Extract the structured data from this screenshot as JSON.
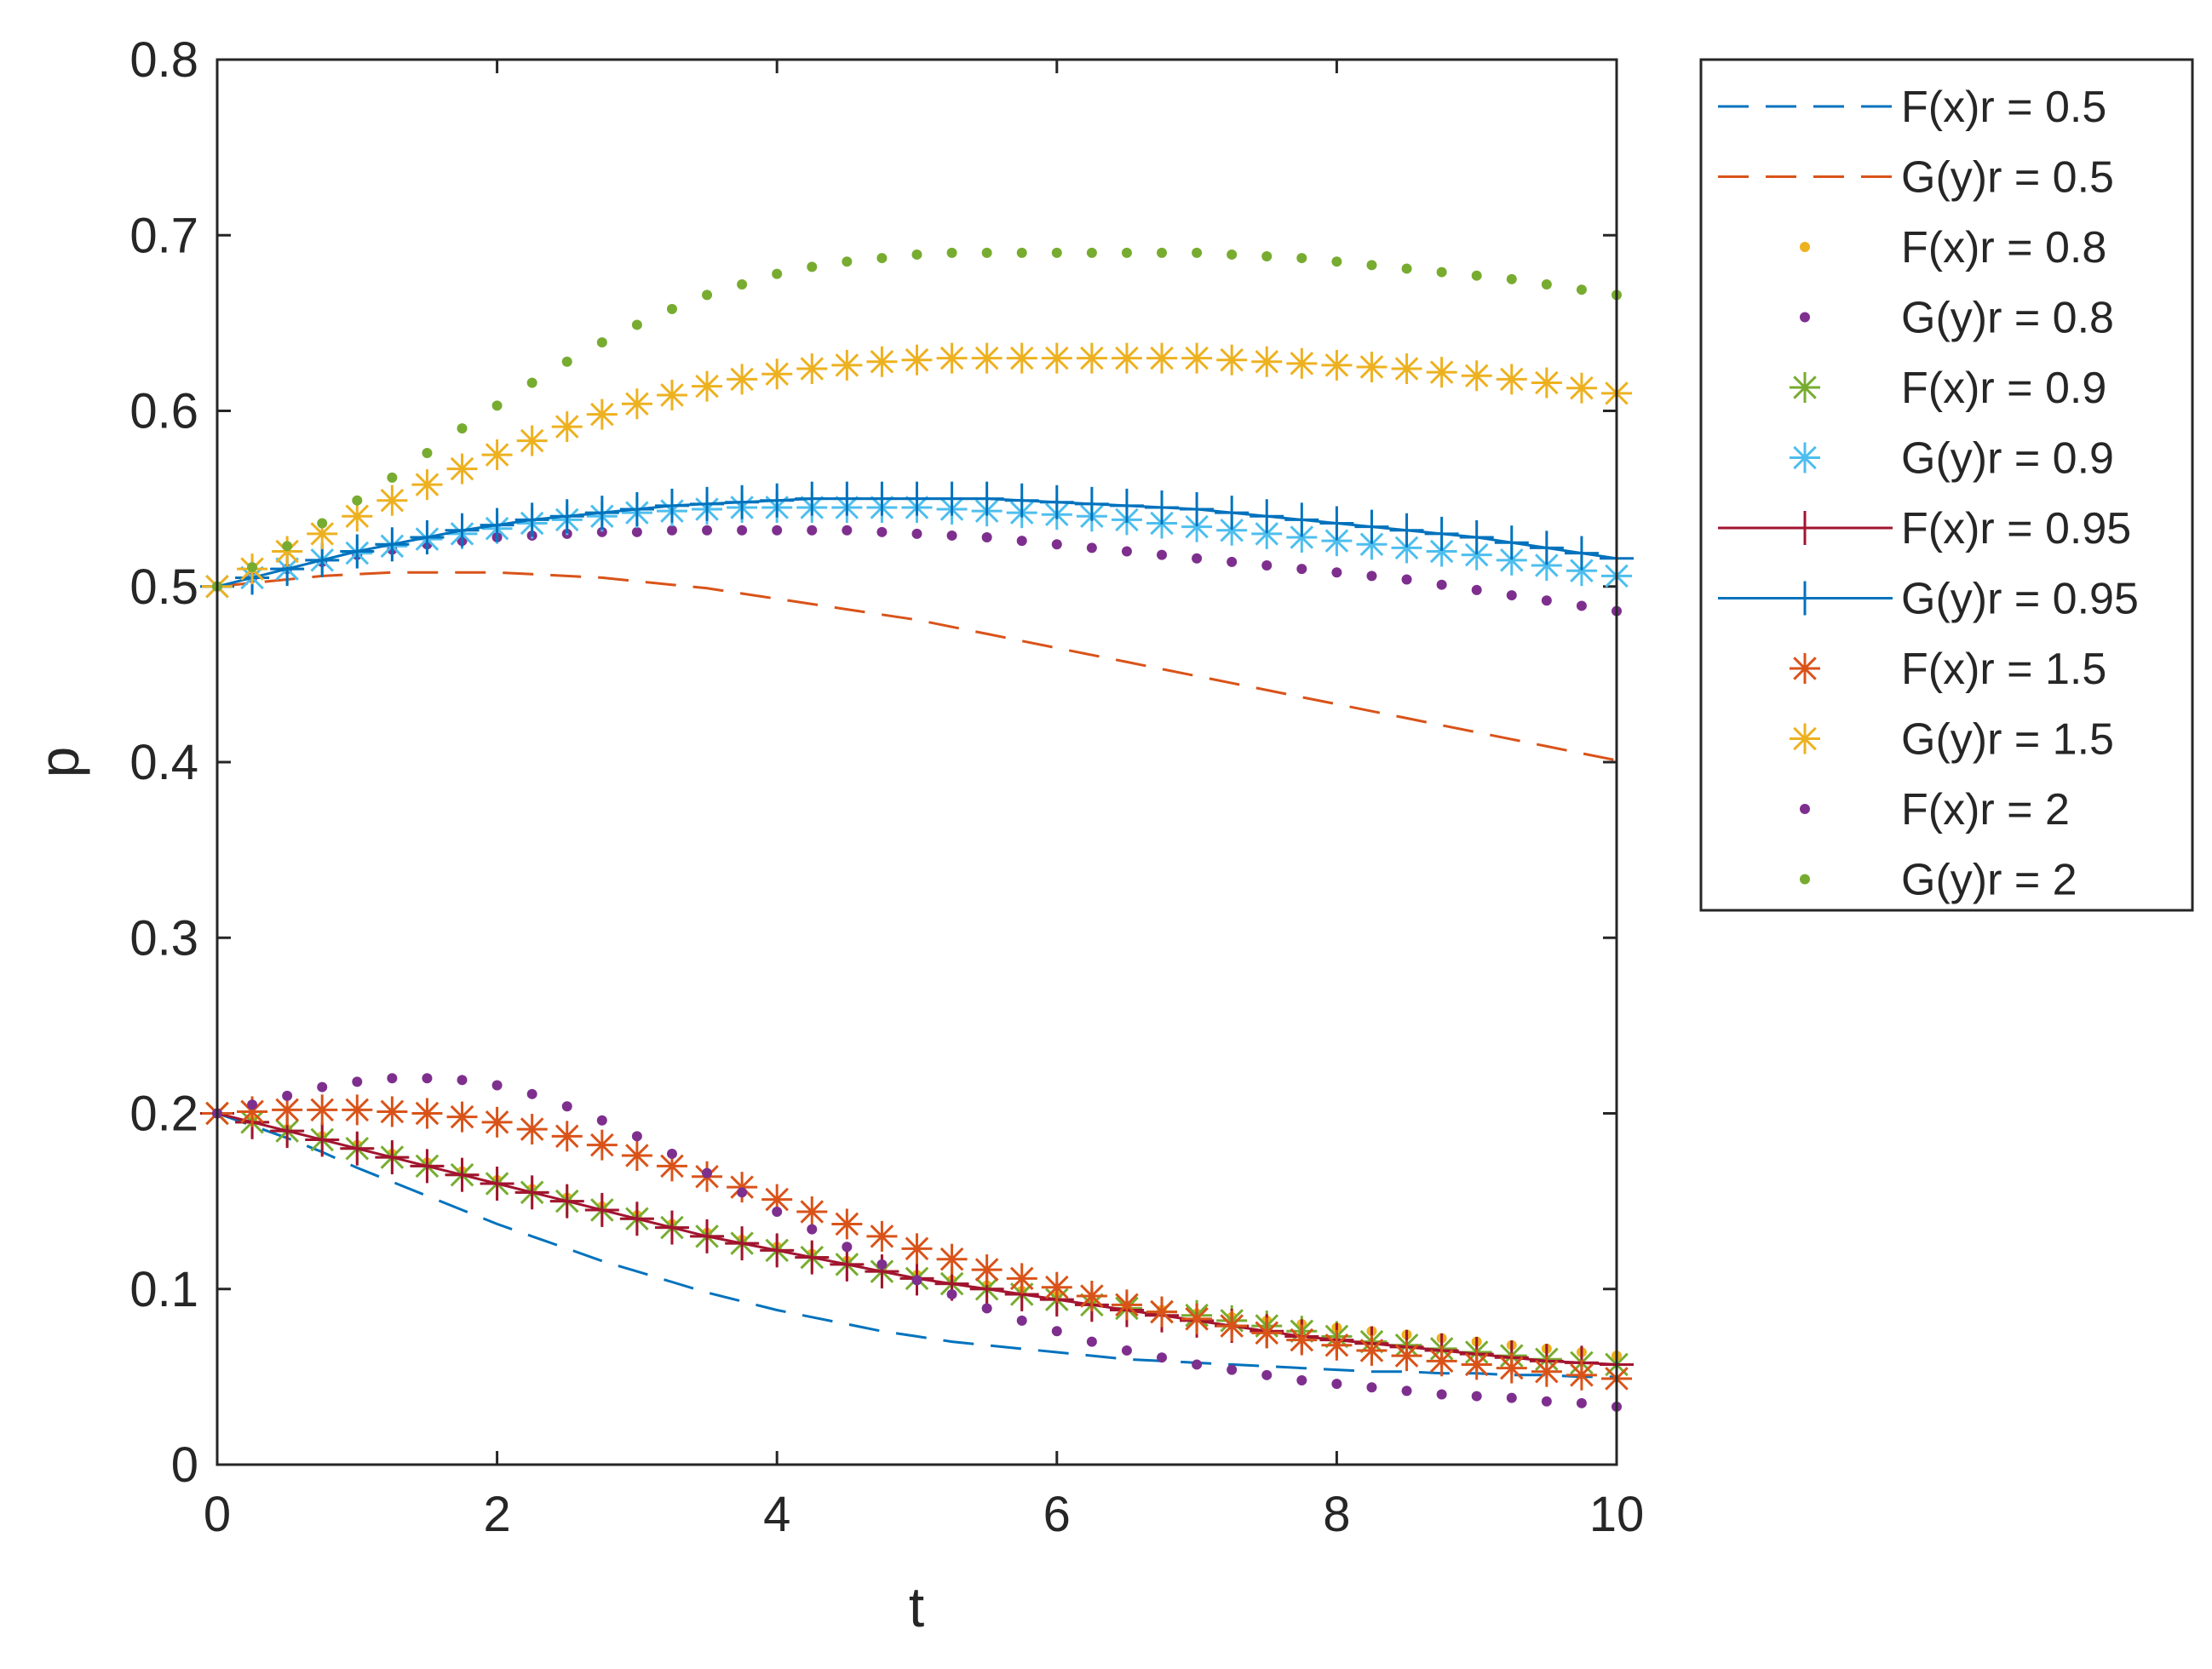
{
  "chart_data": {
    "type": "line",
    "xlabel": "t",
    "ylabel": "p",
    "xlim": [
      0,
      10
    ],
    "ylim": [
      0,
      0.8
    ],
    "xticks": [
      "0",
      "2",
      "4",
      "6",
      "8",
      "10"
    ],
    "yticks": [
      "0",
      "0.1",
      "0.2",
      "0.3",
      "0.4",
      "0.5",
      "0.6",
      "0.7",
      "0.8"
    ],
    "grid": false,
    "legend_position": "outside-right",
    "x": [
      0,
      0.25,
      0.5,
      0.75,
      1,
      1.25,
      1.5,
      1.75,
      2,
      2.25,
      2.5,
      2.75,
      3,
      3.25,
      3.5,
      3.75,
      4,
      4.25,
      4.5,
      4.75,
      5,
      5.25,
      5.5,
      5.75,
      6,
      6.25,
      6.5,
      6.75,
      7,
      7.25,
      7.5,
      7.75,
      8,
      8.25,
      8.5,
      8.75,
      9,
      9.25,
      9.5,
      9.75,
      10
    ],
    "series": [
      {
        "name": "F(x)r = 0.5",
        "color": "#0072BD",
        "style": "dashed",
        "marker": "none",
        "values": [
          0.2,
          0.193,
          0.186,
          0.178,
          0.169,
          0.161,
          0.153,
          0.145,
          0.137,
          0.13,
          0.123,
          0.116,
          0.11,
          0.104,
          0.098,
          0.093,
          0.088,
          0.084,
          0.08,
          0.076,
          0.073,
          0.07,
          0.068,
          0.066,
          0.064,
          0.062,
          0.06,
          0.059,
          0.058,
          0.057,
          0.056,
          0.055,
          0.054,
          0.053,
          0.053,
          0.052,
          0.052,
          0.051,
          0.051,
          0.05,
          0.05
        ]
      },
      {
        "name": "G(y)r = 0.5",
        "color": "#D95319",
        "style": "dashed",
        "marker": "none",
        "values": [
          0.5,
          0.502,
          0.504,
          0.506,
          0.507,
          0.508,
          0.508,
          0.508,
          0.508,
          0.507,
          0.506,
          0.505,
          0.503,
          0.501,
          0.499,
          0.496,
          0.493,
          0.49,
          0.487,
          0.484,
          0.481,
          0.477,
          0.473,
          0.469,
          0.465,
          0.461,
          0.457,
          0.453,
          0.449,
          0.445,
          0.441,
          0.437,
          0.433,
          0.429,
          0.425,
          0.421,
          0.417,
          0.413,
          0.409,
          0.405,
          0.401
        ]
      },
      {
        "name": "F(x)r = 0.8",
        "color": "#EDB120",
        "style": "none",
        "marker": "dot",
        "values": [
          0.2,
          0.196,
          0.191,
          0.187,
          0.182,
          0.177,
          0.172,
          0.167,
          0.162,
          0.157,
          0.152,
          0.147,
          0.142,
          0.137,
          0.132,
          0.128,
          0.124,
          0.12,
          0.116,
          0.112,
          0.108,
          0.105,
          0.102,
          0.099,
          0.096,
          0.093,
          0.09,
          0.088,
          0.086,
          0.084,
          0.082,
          0.08,
          0.078,
          0.076,
          0.074,
          0.072,
          0.07,
          0.068,
          0.066,
          0.064,
          0.062
        ]
      },
      {
        "name": "G(y)r = 0.8",
        "color": "#7E2F8E",
        "style": "none",
        "marker": "dot",
        "values": [
          0.5,
          0.505,
          0.51,
          0.514,
          0.518,
          0.521,
          0.524,
          0.526,
          0.528,
          0.529,
          0.53,
          0.531,
          0.531,
          0.532,
          0.532,
          0.532,
          0.532,
          0.532,
          0.532,
          0.531,
          0.53,
          0.529,
          0.528,
          0.526,
          0.524,
          0.522,
          0.52,
          0.518,
          0.516,
          0.514,
          0.512,
          0.51,
          0.508,
          0.506,
          0.504,
          0.501,
          0.498,
          0.495,
          0.492,
          0.489,
          0.486
        ]
      },
      {
        "name": "F(x)r = 0.9",
        "color": "#77AC30",
        "style": "none",
        "marker": "asterisk",
        "values": [
          0.2,
          0.195,
          0.19,
          0.185,
          0.18,
          0.175,
          0.17,
          0.165,
          0.16,
          0.155,
          0.15,
          0.145,
          0.14,
          0.135,
          0.13,
          0.126,
          0.122,
          0.118,
          0.114,
          0.11,
          0.106,
          0.103,
          0.1,
          0.097,
          0.094,
          0.091,
          0.089,
          0.087,
          0.085,
          0.082,
          0.079,
          0.076,
          0.073,
          0.07,
          0.068,
          0.066,
          0.064,
          0.062,
          0.06,
          0.058,
          0.057
        ]
      },
      {
        "name": "G(y)r = 0.9",
        "color": "#4DBEEE",
        "style": "none",
        "marker": "asterisk",
        "values": [
          0.5,
          0.505,
          0.51,
          0.515,
          0.519,
          0.523,
          0.527,
          0.53,
          0.533,
          0.536,
          0.538,
          0.54,
          0.542,
          0.543,
          0.544,
          0.545,
          0.545,
          0.545,
          0.545,
          0.545,
          0.545,
          0.544,
          0.543,
          0.542,
          0.541,
          0.54,
          0.538,
          0.536,
          0.534,
          0.532,
          0.53,
          0.528,
          0.526,
          0.524,
          0.522,
          0.52,
          0.518,
          0.515,
          0.512,
          0.509,
          0.506
        ]
      },
      {
        "name": "F(x)r = 0.95",
        "color": "#A2142F",
        "style": "solid",
        "marker": "plus",
        "values": [
          0.2,
          0.195,
          0.19,
          0.185,
          0.18,
          0.175,
          0.17,
          0.165,
          0.16,
          0.155,
          0.15,
          0.145,
          0.14,
          0.135,
          0.13,
          0.126,
          0.122,
          0.118,
          0.114,
          0.11,
          0.106,
          0.103,
          0.1,
          0.097,
          0.094,
          0.091,
          0.088,
          0.085,
          0.082,
          0.079,
          0.076,
          0.073,
          0.071,
          0.069,
          0.067,
          0.065,
          0.063,
          0.061,
          0.059,
          0.058,
          0.057
        ]
      },
      {
        "name": "G(y)r = 0.95",
        "color": "#0072BD",
        "style": "solid",
        "marker": "plus",
        "values": [
          0.5,
          0.505,
          0.51,
          0.515,
          0.52,
          0.524,
          0.528,
          0.532,
          0.535,
          0.538,
          0.54,
          0.542,
          0.544,
          0.546,
          0.547,
          0.548,
          0.549,
          0.55,
          0.55,
          0.55,
          0.55,
          0.55,
          0.55,
          0.549,
          0.548,
          0.547,
          0.546,
          0.545,
          0.544,
          0.542,
          0.54,
          0.538,
          0.536,
          0.534,
          0.532,
          0.53,
          0.528,
          0.525,
          0.522,
          0.519,
          0.516
        ]
      },
      {
        "name": "F(x)r = 1.5",
        "color": "#D95319",
        "style": "none",
        "marker": "asterisk",
        "values": [
          0.2,
          0.201,
          0.202,
          0.202,
          0.202,
          0.201,
          0.2,
          0.198,
          0.195,
          0.191,
          0.187,
          0.182,
          0.176,
          0.17,
          0.164,
          0.158,
          0.151,
          0.144,
          0.137,
          0.13,
          0.123,
          0.117,
          0.111,
          0.106,
          0.101,
          0.096,
          0.091,
          0.087,
          0.083,
          0.079,
          0.075,
          0.071,
          0.068,
          0.065,
          0.062,
          0.059,
          0.057,
          0.055,
          0.053,
          0.051,
          0.049
        ]
      },
      {
        "name": "G(y)r = 1.5",
        "color": "#EDB120",
        "style": "none",
        "marker": "asterisk",
        "values": [
          0.5,
          0.51,
          0.52,
          0.53,
          0.54,
          0.549,
          0.558,
          0.567,
          0.575,
          0.583,
          0.591,
          0.598,
          0.604,
          0.609,
          0.614,
          0.618,
          0.621,
          0.624,
          0.626,
          0.628,
          0.629,
          0.63,
          0.63,
          0.63,
          0.63,
          0.63,
          0.63,
          0.63,
          0.63,
          0.629,
          0.628,
          0.627,
          0.626,
          0.625,
          0.624,
          0.622,
          0.62,
          0.618,
          0.616,
          0.613,
          0.61
        ]
      },
      {
        "name": "F(x)r = 2",
        "color": "#7E2F8E",
        "style": "none",
        "marker": "dot",
        "values": [
          0.2,
          0.205,
          0.21,
          0.215,
          0.218,
          0.22,
          0.22,
          0.219,
          0.216,
          0.211,
          0.204,
          0.196,
          0.187,
          0.177,
          0.166,
          0.155,
          0.144,
          0.134,
          0.124,
          0.114,
          0.105,
          0.097,
          0.089,
          0.082,
          0.076,
          0.07,
          0.065,
          0.061,
          0.057,
          0.054,
          0.051,
          0.048,
          0.046,
          0.044,
          0.042,
          0.04,
          0.039,
          0.038,
          0.036,
          0.035,
          0.033
        ]
      },
      {
        "name": "G(y)r = 2",
        "color": "#77AC30",
        "style": "none",
        "marker": "dot",
        "values": [
          0.5,
          0.511,
          0.523,
          0.536,
          0.549,
          0.562,
          0.576,
          0.59,
          0.603,
          0.616,
          0.628,
          0.639,
          0.649,
          0.658,
          0.666,
          0.672,
          0.678,
          0.682,
          0.685,
          0.687,
          0.689,
          0.69,
          0.69,
          0.69,
          0.69,
          0.69,
          0.69,
          0.69,
          0.69,
          0.689,
          0.688,
          0.687,
          0.685,
          0.683,
          0.681,
          0.679,
          0.677,
          0.675,
          0.672,
          0.669,
          0.666
        ]
      }
    ]
  }
}
